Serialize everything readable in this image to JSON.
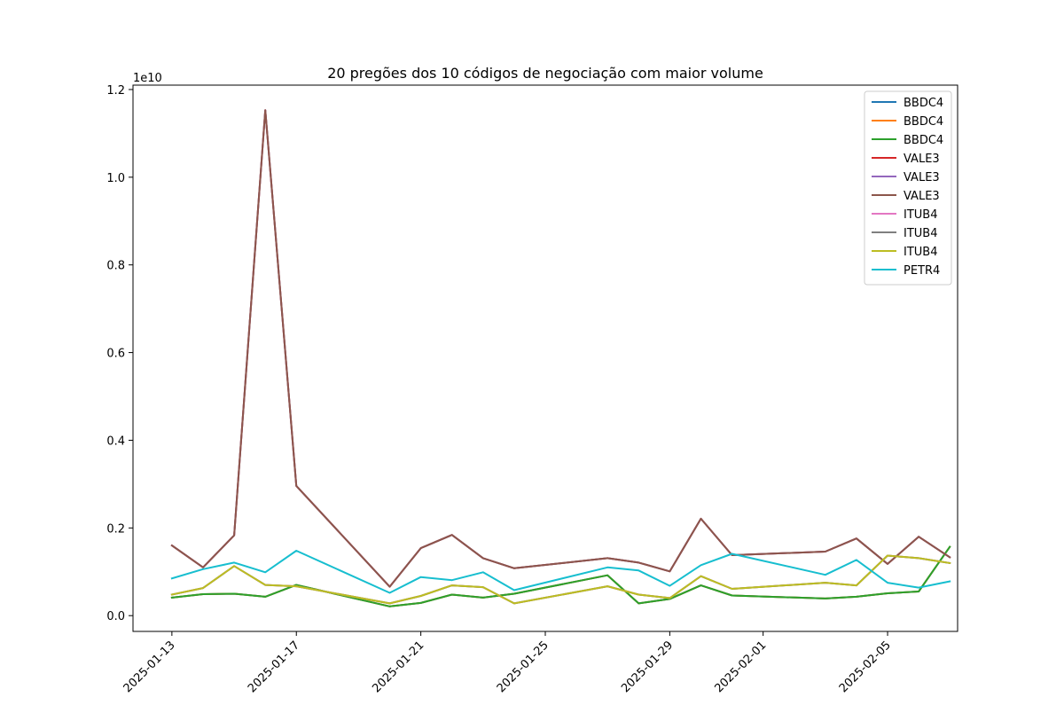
{
  "chart_data": {
    "type": "line",
    "title": "20 pregões dos 10 códigos de negociação com maior volume",
    "xlabel": "",
    "ylabel": "",
    "y_offset_label": "1e10",
    "y_scale": 10000000000.0,
    "ylim": [
      -0.036,
      1.21
    ],
    "xlim": [
      "2025-01-11 18:00",
      "2025-02-07 06:00"
    ],
    "grid": false,
    "legend_position": "top-right",
    "x_ticks": [
      "2025-01-13",
      "2025-01-17",
      "2025-01-21",
      "2025-01-25",
      "2025-01-29",
      "2025-02-01",
      "2025-02-05"
    ],
    "y_ticks": [
      0.0,
      0.2,
      0.4,
      0.6,
      0.8,
      1.0,
      1.2
    ],
    "y_tick_labels": [
      "0.0",
      "0.2",
      "0.4",
      "0.6",
      "0.8",
      "1.0",
      "1.2"
    ],
    "x": [
      "2025-01-13",
      "2025-01-14",
      "2025-01-15",
      "2025-01-16",
      "2025-01-17",
      "2025-01-20",
      "2025-01-21",
      "2025-01-22",
      "2025-01-23",
      "2025-01-24",
      "2025-01-27",
      "2025-01-28",
      "2025-01-29",
      "2025-01-30",
      "2025-01-31",
      "2025-02-03",
      "2025-02-04",
      "2025-02-05",
      "2025-02-06",
      "2025-02-07"
    ],
    "series": [
      {
        "name": "BBDC4",
        "color": "#1f77b4",
        "values": [
          0.041,
          0.049,
          0.05,
          0.043,
          0.07,
          0.021,
          0.029,
          0.048,
          0.041,
          0.05,
          0.092,
          0.028,
          0.038,
          0.069,
          0.046,
          0.039,
          0.043,
          0.051,
          0.055,
          0.157
        ]
      },
      {
        "name": "BBDC4",
        "color": "#ff7f0e",
        "values": [
          0.041,
          0.049,
          0.05,
          0.043,
          0.07,
          0.021,
          0.029,
          0.048,
          0.041,
          0.05,
          0.092,
          0.028,
          0.038,
          0.069,
          0.046,
          0.039,
          0.043,
          0.051,
          0.055,
          0.157
        ]
      },
      {
        "name": "BBDC4",
        "color": "#2ca02c",
        "values": [
          0.041,
          0.049,
          0.05,
          0.043,
          0.07,
          0.021,
          0.029,
          0.048,
          0.041,
          0.05,
          0.092,
          0.028,
          0.038,
          0.069,
          0.046,
          0.039,
          0.043,
          0.051,
          0.055,
          0.157
        ]
      },
      {
        "name": "VALE3",
        "color": "#d62728",
        "values": [
          0.16,
          0.11,
          0.183,
          1.153,
          0.296,
          0.066,
          0.154,
          0.184,
          0.131,
          0.108,
          0.131,
          0.121,
          0.101,
          0.221,
          0.138,
          0.146,
          0.176,
          0.118,
          0.18,
          0.133
        ]
      },
      {
        "name": "VALE3",
        "color": "#9467bd",
        "values": [
          0.16,
          0.11,
          0.183,
          1.153,
          0.296,
          0.066,
          0.154,
          0.184,
          0.131,
          0.108,
          0.131,
          0.121,
          0.101,
          0.221,
          0.138,
          0.146,
          0.176,
          0.118,
          0.18,
          0.133
        ]
      },
      {
        "name": "VALE3",
        "color": "#8c564b",
        "values": [
          0.16,
          0.11,
          0.183,
          1.153,
          0.296,
          0.066,
          0.154,
          0.184,
          0.131,
          0.108,
          0.131,
          0.121,
          0.101,
          0.221,
          0.138,
          0.146,
          0.176,
          0.118,
          0.18,
          0.133
        ]
      },
      {
        "name": "ITUB4",
        "color": "#e377c2",
        "values": [
          0.048,
          0.063,
          0.113,
          0.07,
          0.067,
          0.028,
          0.045,
          0.069,
          0.065,
          0.028,
          0.067,
          0.048,
          0.04,
          0.09,
          0.061,
          0.075,
          0.069,
          0.137,
          0.131,
          0.12
        ]
      },
      {
        "name": "ITUB4",
        "color": "#7f7f7f",
        "values": [
          0.048,
          0.063,
          0.113,
          0.07,
          0.067,
          0.028,
          0.045,
          0.069,
          0.065,
          0.028,
          0.067,
          0.048,
          0.04,
          0.09,
          0.061,
          0.075,
          0.069,
          0.137,
          0.131,
          0.12
        ]
      },
      {
        "name": "ITUB4",
        "color": "#bcbd22",
        "values": [
          0.048,
          0.063,
          0.113,
          0.07,
          0.067,
          0.028,
          0.045,
          0.069,
          0.065,
          0.028,
          0.067,
          0.048,
          0.04,
          0.09,
          0.061,
          0.075,
          0.069,
          0.137,
          0.131,
          0.12
        ]
      },
      {
        "name": "PETR4",
        "color": "#17becf",
        "values": [
          0.085,
          0.106,
          0.121,
          0.099,
          0.148,
          0.052,
          0.088,
          0.081,
          0.099,
          0.058,
          0.11,
          0.103,
          0.068,
          0.115,
          0.141,
          0.093,
          0.127,
          0.075,
          0.064,
          0.078
        ]
      }
    ]
  }
}
